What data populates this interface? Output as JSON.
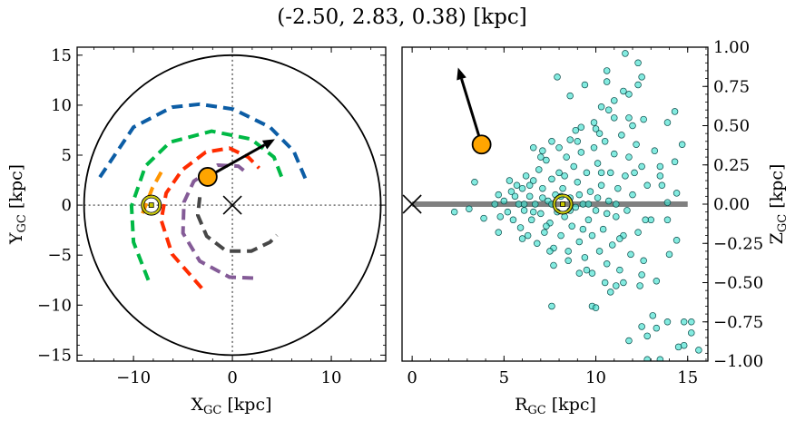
{
  "title": "(-2.50, 2.83, 0.38) [kpc]",
  "chart_data": [
    {
      "type": "line",
      "panel": "left",
      "xlabel": {
        "main": "X",
        "sub": "GC",
        "unit": " [kpc]"
      },
      "ylabel": {
        "main": "Y",
        "sub": "GC",
        "unit": " [kpc]"
      },
      "xlim": [
        -15.7,
        15.5
      ],
      "ylim": [
        -15.6,
        15.8
      ],
      "xticks": [
        -10,
        0,
        10
      ],
      "xtick_labels": [
        "−10",
        "0",
        "10"
      ],
      "yticks": [
        -15,
        -10,
        -5,
        0,
        5,
        10,
        15
      ],
      "ytick_labels": [
        "−15",
        "−10",
        "−5",
        "0",
        "5",
        "10",
        "15"
      ],
      "x_minor_step": 2,
      "y_minor_step": 1,
      "grid": false,
      "boundary_circle_radius": 15,
      "reference_lines": {
        "x": 0,
        "y": 0,
        "extent": 15,
        "color": "#808080",
        "style": "dotted"
      },
      "galactic_center_marker": {
        "x": 0,
        "y": 0,
        "marker": "x"
      },
      "sun_marker": {
        "x": -8.2,
        "y": 0,
        "color": "#c8c800"
      },
      "object": {
        "x": -2.5,
        "y": 2.83,
        "color": "#ffa500"
      },
      "velocity_arrow": {
        "from": [
          -2.5,
          2.83
        ],
        "to": [
          4.3,
          6.6
        ]
      },
      "series": [
        {
          "color": "#0c5da5",
          "points": [
            [
              -13.4,
              2.8
            ],
            [
              -10.0,
              7.8
            ],
            [
              -6.1,
              9.8
            ],
            [
              -3.3,
              10.1
            ],
            [
              0.1,
              9.6
            ],
            [
              3.8,
              7.8
            ],
            [
              6.2,
              5.4
            ],
            [
              7.4,
              2.6
            ]
          ]
        },
        {
          "color": "#00b945",
          "points": [
            [
              -8.5,
              -7.5
            ],
            [
              -10.0,
              -3.7
            ],
            [
              -10.2,
              -0.1
            ],
            [
              -8.8,
              3.9
            ],
            [
              -6.3,
              6.3
            ],
            [
              -2.1,
              7.4
            ],
            [
              1.9,
              6.6
            ],
            [
              4.2,
              4.8
            ],
            [
              5.1,
              2.5
            ]
          ]
        },
        {
          "color": "#ff9500",
          "points": [
            [
              -7.2,
              3.3
            ],
            [
              -8.1,
              1.7
            ],
            [
              -8.8,
              -0.1
            ],
            [
              -9.2,
              -1.1
            ]
          ]
        },
        {
          "color": "#ff2c00",
          "points": [
            [
              -3.1,
              -8.3
            ],
            [
              -6.1,
              -4.9
            ],
            [
              -7.2,
              -1.5
            ],
            [
              -6.7,
              1.2
            ],
            [
              -5.1,
              3.5
            ],
            [
              -2.7,
              5.3
            ],
            [
              -0.3,
              5.7
            ],
            [
              1.6,
              4.8
            ],
            [
              2.7,
              3.7
            ]
          ]
        },
        {
          "color": "#845b97",
          "points": [
            [
              2.1,
              -7.3
            ],
            [
              -0.3,
              -7.2
            ],
            [
              -3.3,
              -5.6
            ],
            [
              -5.0,
              -2.8
            ],
            [
              -4.9,
              0.3
            ],
            [
              -3.9,
              2.4
            ],
            [
              -1.5,
              4.0
            ],
            [
              0.6,
              3.9
            ],
            [
              1.6,
              3.1
            ]
          ]
        },
        {
          "color": "#474747",
          "points": [
            [
              -3.3,
              0.8
            ],
            [
              -3.5,
              -1.0
            ],
            [
              -2.6,
              -3.1
            ],
            [
              -0.6,
              -4.6
            ],
            [
              1.9,
              -4.6
            ],
            [
              3.8,
              -3.7
            ],
            [
              4.5,
              -3.0
            ]
          ]
        }
      ]
    },
    {
      "type": "scatter",
      "panel": "right",
      "xlabel": {
        "main": "R",
        "sub": "GC",
        "unit": " [kpc]"
      },
      "ylabel": {
        "main": "Z",
        "sub": "GC",
        "unit": " [kpc]"
      },
      "xlim": [
        -0.55,
        16.1
      ],
      "ylim": [
        -1.0,
        1.0
      ],
      "xticks": [
        0,
        5,
        10,
        15
      ],
      "xtick_labels": [
        "0",
        "5",
        "10",
        "15"
      ],
      "yticks": [
        -1.0,
        -0.75,
        -0.5,
        -0.25,
        0,
        0.25,
        0.5,
        0.75,
        1.0
      ],
      "ytick_labels": [
        "−1.00",
        "−0.75",
        "−0.50",
        "−0.25",
        "0.00",
        "0.25",
        "0.50",
        "0.75",
        "1.00"
      ],
      "x_minor_step": 1,
      "y_minor_step": 0.05,
      "yaxis_side": "right",
      "grid": false,
      "disk_line": {
        "from": 0,
        "to": 15,
        "z": 0,
        "color": "#808080"
      },
      "galactic_center_marker": {
        "x": 0,
        "y": 0,
        "marker": "x"
      },
      "sun_marker": {
        "x": 8.2,
        "y": 0,
        "color": "#c8c800"
      },
      "object": {
        "x": 3.78,
        "y": 0.38,
        "color": "#ffa500"
      },
      "velocity_arrow": {
        "from": [
          3.78,
          0.38
        ],
        "to": [
          2.5,
          0.87
        ]
      },
      "point_color": "#40e0d0",
      "points": [
        [
          11.6,
          0.96
        ],
        [
          12.3,
          0.9
        ],
        [
          10.6,
          0.85
        ],
        [
          7.9,
          0.81
        ],
        [
          12.5,
          0.81
        ],
        [
          10.6,
          0.78
        ],
        [
          9.4,
          0.76
        ],
        [
          12.3,
          0.76
        ],
        [
          8.6,
          0.69
        ],
        [
          11.5,
          0.72
        ],
        [
          11.8,
          0.7
        ],
        [
          11.0,
          0.66
        ],
        [
          10.3,
          0.62
        ],
        [
          10.7,
          0.6
        ],
        [
          14.3,
          0.59
        ],
        [
          11.8,
          0.55
        ],
        [
          12.6,
          0.54
        ],
        [
          13.9,
          0.52
        ],
        [
          9.9,
          0.52
        ],
        [
          9.2,
          0.49
        ],
        [
          8.9,
          0.47
        ],
        [
          10.2,
          0.45
        ],
        [
          7.6,
          0.4
        ],
        [
          8.6,
          0.41
        ],
        [
          14.7,
          0.38
        ],
        [
          6.6,
          0.36
        ],
        [
          7.1,
          0.34
        ],
        [
          14.3,
          0.27
        ],
        [
          13.5,
          0.24
        ],
        [
          13.5,
          0.18
        ],
        [
          13.6,
          0.12
        ],
        [
          3.4,
          0.14
        ],
        [
          14.4,
          0.07
        ],
        [
          13.9,
          0.01
        ],
        [
          2.3,
          -0.05
        ],
        [
          3.1,
          -0.03
        ],
        [
          3.9,
          -0.09
        ],
        [
          4.7,
          -0.18
        ],
        [
          13.9,
          -0.1
        ],
        [
          14.4,
          -0.23
        ],
        [
          14.0,
          -0.32
        ],
        [
          7.7,
          -0.39
        ],
        [
          9.1,
          -0.44
        ],
        [
          9.8,
          -0.44
        ],
        [
          10.8,
          -0.56
        ],
        [
          11.1,
          -0.52
        ],
        [
          12.4,
          -0.52
        ],
        [
          13.3,
          -0.49
        ],
        [
          7.6,
          -0.65
        ],
        [
          9.8,
          -0.65
        ],
        [
          10.0,
          -0.66
        ],
        [
          13.1,
          -0.71
        ],
        [
          13.9,
          -0.75
        ],
        [
          14.8,
          -0.75
        ],
        [
          15.2,
          -0.75
        ],
        [
          12.5,
          -0.78
        ],
        [
          13.3,
          -0.79
        ],
        [
          15.2,
          -0.82
        ],
        [
          11.8,
          -0.87
        ],
        [
          12.8,
          -0.84
        ],
        [
          14.5,
          -0.91
        ],
        [
          14.8,
          -0.9
        ],
        [
          15.6,
          -0.93
        ],
        [
          12.8,
          -0.99
        ],
        [
          13.5,
          -0.99
        ],
        [
          5.0,
          0.02
        ],
        [
          5.2,
          -0.05
        ],
        [
          5.4,
          0.08
        ],
        [
          5.5,
          -0.1
        ],
        [
          5.7,
          0.12
        ],
        [
          5.8,
          0.0
        ],
        [
          5.9,
          -0.15
        ],
        [
          6.0,
          0.1
        ],
        [
          6.1,
          -0.04
        ],
        [
          6.2,
          0.18
        ],
        [
          6.3,
          -0.2
        ],
        [
          6.4,
          0.05
        ],
        [
          6.5,
          -0.1
        ],
        [
          6.6,
          0.15
        ],
        [
          6.7,
          0.0
        ],
        [
          6.8,
          -0.25
        ],
        [
          6.9,
          0.22
        ],
        [
          7.0,
          -0.06
        ],
        [
          7.1,
          0.1
        ],
        [
          7.2,
          -0.18
        ],
        [
          7.3,
          0.28
        ],
        [
          7.4,
          0.02
        ],
        [
          7.5,
          -0.12
        ],
        [
          7.6,
          0.16
        ],
        [
          7.7,
          -0.28
        ],
        [
          7.8,
          0.06
        ],
        [
          7.9,
          -0.05
        ],
        [
          8.0,
          0.2
        ],
        [
          8.1,
          -0.2
        ],
        [
          8.2,
          0.1
        ],
        [
          8.3,
          -0.08
        ],
        [
          8.4,
          0.3
        ],
        [
          8.5,
          -0.3
        ],
        [
          8.6,
          0.04
        ],
        [
          8.7,
          -0.14
        ],
        [
          8.8,
          0.24
        ],
        [
          8.9,
          -0.02
        ],
        [
          9.0,
          0.14
        ],
        [
          9.1,
          -0.24
        ],
        [
          9.2,
          0.33
        ],
        [
          9.3,
          0.0
        ],
        [
          9.4,
          -0.34
        ],
        [
          9.5,
          0.2
        ],
        [
          9.6,
          -0.1
        ],
        [
          9.7,
          0.08
        ],
        [
          9.8,
          -0.2
        ],
        [
          9.9,
          0.36
        ],
        [
          10.0,
          -0.04
        ],
        [
          10.1,
          0.26
        ],
        [
          10.2,
          -0.3
        ],
        [
          10.3,
          0.12
        ],
        [
          10.4,
          -0.16
        ],
        [
          10.5,
          0.4
        ],
        [
          10.6,
          -0.38
        ],
        [
          10.7,
          0.02
        ],
        [
          10.8,
          0.2
        ],
        [
          10.9,
          -0.26
        ],
        [
          11.0,
          0.32
        ],
        [
          11.1,
          -0.08
        ],
        [
          11.2,
          0.1
        ],
        [
          11.3,
          -0.42
        ],
        [
          11.4,
          0.44
        ],
        [
          11.5,
          -0.2
        ],
        [
          11.6,
          0.18
        ],
        [
          11.7,
          -0.04
        ],
        [
          11.8,
          0.3
        ],
        [
          11.9,
          -0.32
        ],
        [
          12.0,
          0.06
        ],
        [
          12.2,
          0.38
        ],
        [
          12.3,
          -0.18
        ],
        [
          12.5,
          0.24
        ],
        [
          12.6,
          -0.36
        ],
        [
          12.8,
          0.12
        ],
        [
          13.0,
          -0.1
        ],
        [
          13.2,
          0.34
        ],
        [
          4.5,
          0.0
        ],
        [
          4.7,
          0.06
        ],
        [
          4.8,
          -0.08
        ],
        [
          5.3,
          0.15
        ],
        [
          6.0,
          -0.22
        ],
        [
          7.0,
          0.3
        ],
        [
          7.5,
          -0.3
        ],
        [
          8.0,
          0.36
        ],
        [
          8.5,
          -0.36
        ],
        [
          9.0,
          0.4
        ],
        [
          9.5,
          -0.42
        ],
        [
          10.0,
          0.48
        ],
        [
          10.5,
          -0.5
        ],
        [
          11.0,
          0.55
        ],
        [
          11.5,
          -0.5
        ],
        [
          12.0,
          0.5
        ],
        [
          12.5,
          -0.45
        ],
        [
          5.6,
          0.05
        ],
        [
          6.1,
          0.0
        ],
        [
          6.6,
          -0.05
        ],
        [
          7.1,
          0.04
        ],
        [
          7.6,
          0.0
        ],
        [
          8.1,
          0.05
        ],
        [
          8.6,
          -0.04
        ],
        [
          9.1,
          0.06
        ],
        [
          9.6,
          0.0
        ],
        [
          10.1,
          0.04
        ],
        [
          10.6,
          -0.06
        ],
        [
          11.1,
          0.0
        ],
        [
          6.4,
          0.12
        ],
        [
          7.3,
          -0.14
        ],
        [
          8.3,
          0.18
        ],
        [
          9.3,
          -0.16
        ],
        [
          10.3,
          0.2
        ],
        [
          11.3,
          -0.22
        ],
        [
          12.1,
          0.2
        ],
        [
          12.7,
          -0.1
        ]
      ]
    }
  ]
}
